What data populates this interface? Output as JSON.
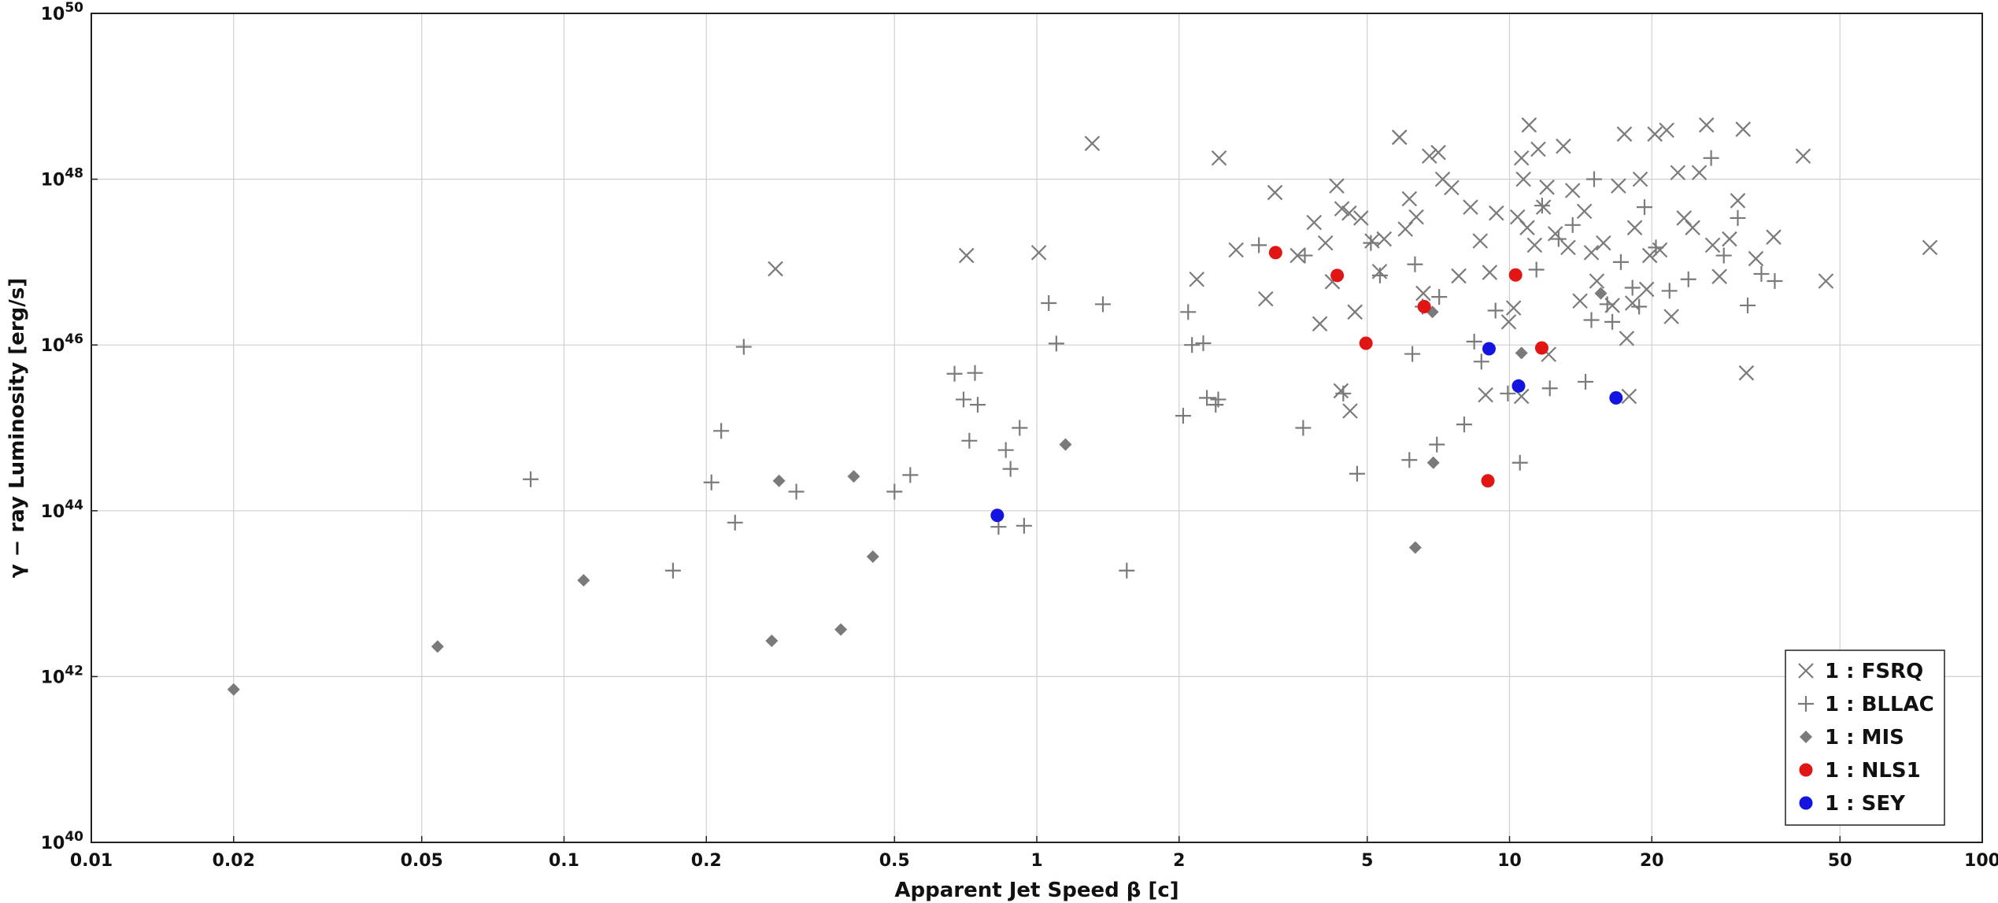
{
  "chart_data": {
    "type": "scatter",
    "xscale": "log",
    "yscale": "log",
    "xlim": [
      0.01,
      100
    ],
    "ylim": [
      1e+40,
      1e+50
    ],
    "xticks": [
      0.01,
      0.02,
      0.05,
      0.1,
      0.2,
      0.5,
      1,
      2,
      5,
      10,
      20,
      50,
      100
    ],
    "xtick_labels": [
      "0.01",
      "0.02",
      "0.05",
      "0.1",
      "0.2",
      "0.5",
      "1",
      "2",
      "5",
      "10",
      "20",
      "50",
      "100"
    ],
    "yticks": [
      1e+40,
      1e+42,
      1e+44,
      1e+46,
      1e+48,
      1e+50
    ],
    "ytick_base": "10",
    "ytick_exponents": [
      "40",
      "42",
      "44",
      "46",
      "48",
      "50"
    ],
    "xlabel": "Apparent Jet Speed β [c]",
    "ylabel": "γ − ray Luminosity [erg/s]",
    "grid": true,
    "legend_position": "bottom-right",
    "series": [
      {
        "name": "1 : FSRQ",
        "marker": "x",
        "color": "#7a7a7a",
        "points": [
          [
            0.28,
            8.3e+46
          ],
          [
            0.71,
            1.2e+47
          ],
          [
            1.01,
            1.3e+47
          ],
          [
            1.31,
            2.7e+48
          ],
          [
            2.18,
            6.2e+46
          ],
          [
            2.43,
            1.8e+48
          ],
          [
            2.64,
            1.4e+47
          ],
          [
            3.05,
            3.6e+46
          ],
          [
            3.19,
            6.9e+47
          ],
          [
            3.56,
            1.2e+47
          ],
          [
            3.86,
            3e+47
          ],
          [
            3.97,
            1.8e+46
          ],
          [
            4.08,
            1.7e+47
          ],
          [
            4.22,
            5.8e+46
          ],
          [
            4.31,
            8.3e+47
          ],
          [
            4.42,
            4.4e+47
          ],
          [
            4.58,
            3.9e+47
          ],
          [
            4.71,
            2.5e+46
          ],
          [
            4.85,
            3.4e+47
          ],
          [
            5.12,
            1.8e+47
          ],
          [
            5.31,
            7.7e+46
          ],
          [
            5.43,
            1.9e+47
          ],
          [
            5.85,
            3.2e+48
          ],
          [
            6.02,
            2.5e+47
          ],
          [
            6.14,
            5.8e+47
          ],
          [
            6.35,
            3.5e+47
          ],
          [
            6.57,
            4.2e+46
          ],
          [
            6.77,
            1.9e+48
          ],
          [
            7.07,
            2.1e+48
          ],
          [
            7.22,
            1e+48
          ],
          [
            7.54,
            7.9e+47
          ],
          [
            7.81,
            6.8e+46
          ],
          [
            8.27,
            4.6e+47
          ],
          [
            8.67,
            1.8e+47
          ],
          [
            9.08,
            7.5e+46
          ],
          [
            9.38,
            3.9e+47
          ],
          [
            9.96,
            1.9e+46
          ],
          [
            10.2,
            2.8e+46
          ],
          [
            10.4,
            3.5e+47
          ],
          [
            10.6,
            1.8e+48
          ],
          [
            10.7,
            1e+48
          ],
          [
            10.9,
            2.6e+47
          ],
          [
            11.0,
            4.5e+48
          ],
          [
            11.3,
            1.6e+47
          ],
          [
            11.5,
            2.3e+48
          ],
          [
            11.8,
            4.6e+47
          ],
          [
            12.0,
            8e+47
          ],
          [
            12.5,
            2.2e+47
          ],
          [
            13.0,
            2.5e+48
          ],
          [
            13.3,
            1.5e+47
          ],
          [
            13.6,
            7.3e+47
          ],
          [
            14.1,
            3.4e+46
          ],
          [
            14.4,
            4.1e+47
          ],
          [
            14.9,
            1.3e+47
          ],
          [
            15.3,
            5.9e+46
          ],
          [
            15.8,
            1.7e+47
          ],
          [
            16.5,
            3e+46
          ],
          [
            17.0,
            8.3e+47
          ],
          [
            17.5,
            3.5e+48
          ],
          [
            17.7,
            1.2e+46
          ],
          [
            18.2,
            3.2e+46
          ],
          [
            18.4,
            2.6e+47
          ],
          [
            18.9,
            1e+48
          ],
          [
            19.5,
            4.7e+46
          ],
          [
            19.8,
            1.2e+47
          ],
          [
            20.3,
            3.5e+48
          ],
          [
            20.8,
            1.4e+47
          ],
          [
            21.5,
            3.9e+48
          ],
          [
            22.0,
            2.2e+46
          ],
          [
            22.7,
            1.2e+48
          ],
          [
            23.4,
            3.4e+47
          ],
          [
            24.4,
            2.6e+47
          ],
          [
            25.2,
            1.2e+48
          ],
          [
            26.1,
            4.5e+48
          ],
          [
            26.9,
            1.6e+47
          ],
          [
            27.8,
            6.7e+46
          ],
          [
            29.2,
            1.9e+47
          ],
          [
            30.4,
            5.5e+47
          ],
          [
            31.2,
            4e+48
          ],
          [
            31.7,
            4.6e+45
          ],
          [
            33.2,
            1.1e+47
          ],
          [
            36.2,
            2e+47
          ],
          [
            41.8,
            1.9e+48
          ],
          [
            46.7,
            5.9e+46
          ],
          [
            77.5,
            1.5e+47
          ],
          [
            4.4,
            2.8e+45
          ],
          [
            4.6,
            1.6e+45
          ],
          [
            5.85,
            3.2e+48
          ],
          [
            8.9,
            2.5e+45
          ],
          [
            10.6,
            2.4e+45
          ],
          [
            12.1,
            7.7e+45
          ],
          [
            17.9,
            2.4e+45
          ]
        ]
      },
      {
        "name": "1 : BLLAC",
        "marker": "+",
        "color": "#7a7a7a",
        "points": [
          [
            0.085,
            2.4e+44
          ],
          [
            0.17,
            1.9e+43
          ],
          [
            0.205,
            2.2e+44
          ],
          [
            0.215,
            9.2e+44
          ],
          [
            0.23,
            7.2e+43
          ],
          [
            0.24,
            9.5e+45
          ],
          [
            0.31,
            1.7e+44
          ],
          [
            0.5,
            1.7e+44
          ],
          [
            0.54,
            2.7e+44
          ],
          [
            0.67,
            4.5e+45
          ],
          [
            0.7,
            2.2e+45
          ],
          [
            0.72,
            7e+44
          ],
          [
            0.74,
            4.6e+45
          ],
          [
            0.75,
            1.9e+45
          ],
          [
            0.83,
            6.4e+43
          ],
          [
            0.86,
            5.4e+44
          ],
          [
            0.88,
            3.2e+44
          ],
          [
            0.92,
            1e+45
          ],
          [
            0.94,
            6.6e+43
          ],
          [
            1.06,
            3.2e+46
          ],
          [
            1.1,
            1.04e+46
          ],
          [
            1.38,
            3.1e+46
          ],
          [
            1.55,
            1.9e+43
          ],
          [
            2.04,
            1.4e+45
          ],
          [
            2.09,
            2.5e+46
          ],
          [
            2.13,
            1e+46
          ],
          [
            2.25,
            1.05e+46
          ],
          [
            2.29,
            2.3e+45
          ],
          [
            2.39,
            1.9e+45
          ],
          [
            2.42,
            2.2e+45
          ],
          [
            2.95,
            1.6e+47
          ],
          [
            3.66,
            1e+45
          ],
          [
            3.69,
            1.2e+47
          ],
          [
            4.45,
            2.6e+45
          ],
          [
            4.76,
            2.8e+44
          ],
          [
            5.09,
            1.7e+47
          ],
          [
            5.32,
            6.9e+46
          ],
          [
            6.14,
            4.1e+44
          ],
          [
            6.23,
            7.8e+45
          ],
          [
            6.31,
            9.4e+46
          ],
          [
            6.55,
            2.9e+46
          ],
          [
            7.02,
            6.3e+44
          ],
          [
            7.1,
            3.8e+46
          ],
          [
            8.02,
            1.1e+45
          ],
          [
            8.42,
            1.1e+46
          ],
          [
            8.72,
            6.3e+45
          ],
          [
            9.34,
            2.6e+46
          ],
          [
            9.92,
            2.6e+45
          ],
          [
            10.52,
            3.8e+44
          ],
          [
            11.4,
            8.1e+46
          ],
          [
            11.72,
            4.8e+47
          ],
          [
            12.17,
            3e+45
          ],
          [
            12.7,
            1.9e+47
          ],
          [
            13.6,
            2.8e+47
          ],
          [
            14.48,
            3.6e+45
          ],
          [
            14.9,
            2e+46
          ],
          [
            15.1,
            1e+48
          ],
          [
            16.1,
            3.1e+46
          ],
          [
            16.5,
            1.9e+46
          ],
          [
            17.2,
            1e+47
          ],
          [
            18.2,
            4.9e+46
          ],
          [
            18.8,
            2.9e+46
          ],
          [
            19.3,
            4.6e+47
          ],
          [
            20.4,
            1.5e+47
          ],
          [
            21.8,
            4.5e+46
          ],
          [
            23.9,
            6.2e+46
          ],
          [
            26.7,
            1.8e+48
          ],
          [
            28.4,
            1.2e+47
          ],
          [
            30.4,
            3.4e+47
          ],
          [
            31.9,
            3e+46
          ],
          [
            34.1,
            7.2e+46
          ],
          [
            36.4,
            5.9e+46
          ]
        ]
      },
      {
        "name": "1 : MIS",
        "marker": "diamond",
        "color": "#7a7a7a",
        "points": [
          [
            0.02,
            7e+41
          ],
          [
            0.054,
            2.3e+42
          ],
          [
            0.11,
            1.45e+43
          ],
          [
            0.275,
            2.7e+42
          ],
          [
            0.285,
            2.3e+44
          ],
          [
            0.385,
            3.7e+42
          ],
          [
            0.41,
            2.6e+44
          ],
          [
            0.45,
            2.8e+43
          ],
          [
            1.15,
            6.3e+44
          ],
          [
            6.32,
            3.6e+43
          ],
          [
            6.87,
            2.5e+46
          ],
          [
            6.9,
            3.8e+44
          ],
          [
            10.6,
            8e+45
          ],
          [
            15.6,
            4.2e+46
          ]
        ]
      },
      {
        "name": "1 : NLS1",
        "marker": "circle",
        "color": "#e21515",
        "points": [
          [
            3.2,
            1.3e+47
          ],
          [
            4.32,
            6.9e+46
          ],
          [
            4.97,
            1.05e+46
          ],
          [
            6.6,
            2.9e+46
          ],
          [
            9.0,
            2.3e+44
          ],
          [
            10.3,
            7e+46
          ],
          [
            11.7,
            9.2e+45
          ]
        ]
      },
      {
        "name": "1 : SEY",
        "marker": "circle",
        "color": "#1414e0",
        "points": [
          [
            0.825,
            8.8e+43
          ],
          [
            9.05,
            9e+45
          ],
          [
            10.45,
            3.2e+45
          ],
          [
            16.8,
            2.3e+45
          ]
        ]
      }
    ]
  }
}
